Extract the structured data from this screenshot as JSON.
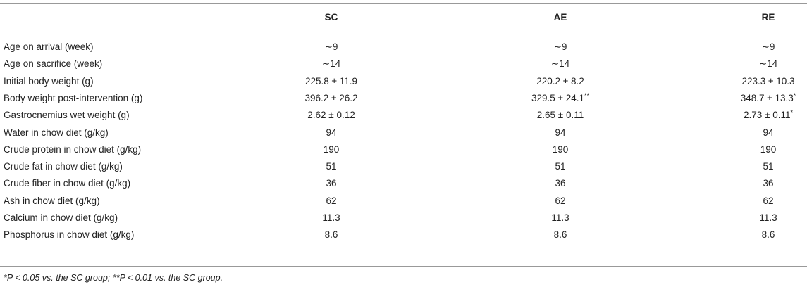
{
  "table": {
    "header": [
      "SC",
      "AE",
      "RE"
    ],
    "rows": [
      [
        "Age on arrival (week)",
        "∼9",
        "∼9",
        "∼9"
      ],
      [
        "Age on sacrifice (week)",
        "∼14",
        "∼14",
        "∼14"
      ],
      [
        "Initial body weight (g)",
        "225.8 ± 11.9",
        "220.2 ± 8.2",
        "223.3 ± 10.3"
      ],
      [
        "Body weight post-intervention (g)",
        "396.2 ± 26.2",
        {
          "text": "329.5 ± 24.1",
          "sup": "**"
        },
        {
          "text": "348.7 ± 13.3",
          "sup": "*"
        }
      ],
      [
        "Gastrocnemius wet weight (g)",
        "2.62 ± 0.12",
        "2.65 ± 0.11",
        {
          "text": "2.73 ± 0.11",
          "sup": "*"
        }
      ],
      [
        "Water in chow diet (g/kg)",
        "94",
        "94",
        "94"
      ],
      [
        "Crude protein in chow diet (g/kg)",
        "190",
        "190",
        "190"
      ],
      [
        "Crude fat in chow diet (g/kg)",
        "51",
        "51",
        "51"
      ],
      [
        "Crude fiber in chow diet (g/kg)",
        "36",
        "36",
        "36"
      ],
      [
        "Ash in chow diet (g/kg)",
        "62",
        "62",
        "62"
      ],
      [
        "Calcium in chow diet (g/kg)",
        "11.3",
        "11.3",
        "11.3"
      ],
      [
        "Phosphorus in chow diet (g/kg)",
        "8.6",
        "8.6",
        "8.6"
      ]
    ],
    "footnote": "*P < 0.05 vs. the SC group; **P < 0.01 vs. the SC group."
  }
}
